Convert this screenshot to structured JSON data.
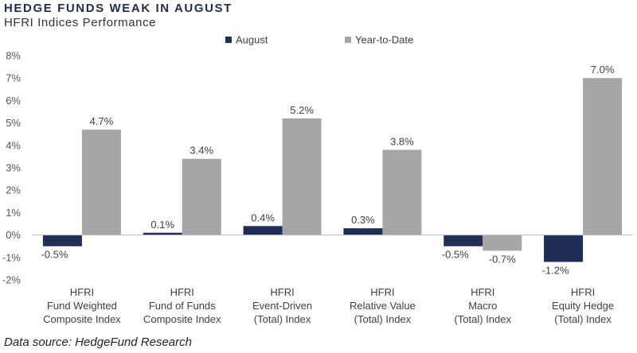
{
  "header": {
    "title": "HEDGE FUNDS WEAK IN AUGUST",
    "subtitle": "HFRI Indices Performance"
  },
  "footer": {
    "source": "Data source: HedgeFund Research"
  },
  "colors": {
    "august": "#1f2d57",
    "ytd": "#a6a6a6",
    "axis": "#bfbfbf",
    "title": "#1f2d4d"
  },
  "chart_data": {
    "type": "bar",
    "title": "HFRI Indices Performance",
    "xlabel": "",
    "ylabel": "",
    "ylim": [
      -2,
      8
    ],
    "yticks": [
      -2,
      -1,
      0,
      1,
      2,
      3,
      4,
      5,
      6,
      7,
      8
    ],
    "yticks_format": "percent",
    "grid": false,
    "legend": {
      "position": "top",
      "entries": [
        "August",
        "Year-to-Date"
      ]
    },
    "categories": [
      [
        "HFRI",
        "Fund Weighted",
        "Composite Index"
      ],
      [
        "HFRI",
        "Fund of Funds",
        "Composite Index"
      ],
      [
        "HFRI",
        "Event-Driven",
        "(Total) Index"
      ],
      [
        "HFRI",
        "Relative Value",
        "(Total) Index"
      ],
      [
        "HFRI",
        "Macro",
        "(Total) Index"
      ],
      [
        "HFRI",
        "Equity Hedge",
        "(Total) Index"
      ]
    ],
    "series": [
      {
        "name": "August",
        "values": [
          -0.5,
          0.1,
          0.4,
          0.3,
          -0.5,
          -1.2
        ],
        "labels": [
          "-0.5%",
          "0.1%",
          "0.4%",
          "0.3%",
          "-0.5%",
          "-1.2%"
        ]
      },
      {
        "name": "Year-to-Date",
        "values": [
          4.7,
          3.4,
          5.2,
          3.8,
          -0.7,
          7.0
        ],
        "labels": [
          "4.7%",
          "3.4%",
          "5.2%",
          "3.8%",
          "-0.7%",
          "7.0%"
        ]
      }
    ]
  }
}
